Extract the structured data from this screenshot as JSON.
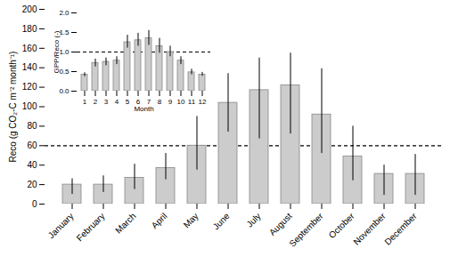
{
  "chart_data": [
    {
      "type": "bar",
      "categories": [
        "January",
        "February",
        "March",
        "April",
        "May",
        "June",
        "July",
        "August",
        "September",
        "October",
        "November",
        "December"
      ],
      "values": [
        20,
        20,
        27,
        37,
        60,
        104,
        117,
        122,
        92,
        49,
        31,
        31
      ],
      "error_upper": [
        6,
        9,
        14,
        15,
        30,
        30,
        33,
        33,
        47,
        31,
        9,
        20
      ],
      "error_lower": [
        10,
        8,
        12,
        12,
        25,
        30,
        50,
        50,
        40,
        25,
        22,
        22
      ],
      "reference_line": 60,
      "color": "#cccccc",
      "ylabel": "Reco (g CO₂-C m⁻² month⁻¹)",
      "ylim": [
        0,
        200
      ],
      "yticks": [
        0,
        20,
        40,
        60,
        80,
        100,
        120,
        140,
        160,
        180,
        200
      ],
      "grid": false
    },
    {
      "type": "bar",
      "categories": [
        "1",
        "2",
        "3",
        "4",
        "5",
        "6",
        "7",
        "8",
        "9",
        "10",
        "11",
        "12"
      ],
      "values": [
        0.42,
        0.72,
        0.75,
        0.78,
        1.25,
        1.3,
        1.35,
        1.15,
        1.0,
        0.78,
        0.48,
        0.42
      ],
      "error_upper": [
        0.05,
        0.1,
        0.1,
        0.1,
        0.18,
        0.18,
        0.2,
        0.2,
        0.15,
        0.1,
        0.08,
        0.06
      ],
      "error_lower": [
        0.05,
        0.1,
        0.1,
        0.1,
        0.15,
        0.15,
        0.18,
        0.18,
        0.12,
        0.1,
        0.06,
        0.04
      ],
      "reference_line": 1.0,
      "color": "#cccccc",
      "xlabel": "Month",
      "ylabel": "GPP/Reco (-)",
      "ylim": [
        0,
        2
      ],
      "yticks": [
        {
          "value": 0,
          "label": "0.0"
        },
        0.5,
        {
          "value": 1.0,
          "label": "1.0"
        },
        1.5,
        {
          "value": 2.0,
          "label": "2.0"
        }
      ],
      "grid": false
    }
  ]
}
